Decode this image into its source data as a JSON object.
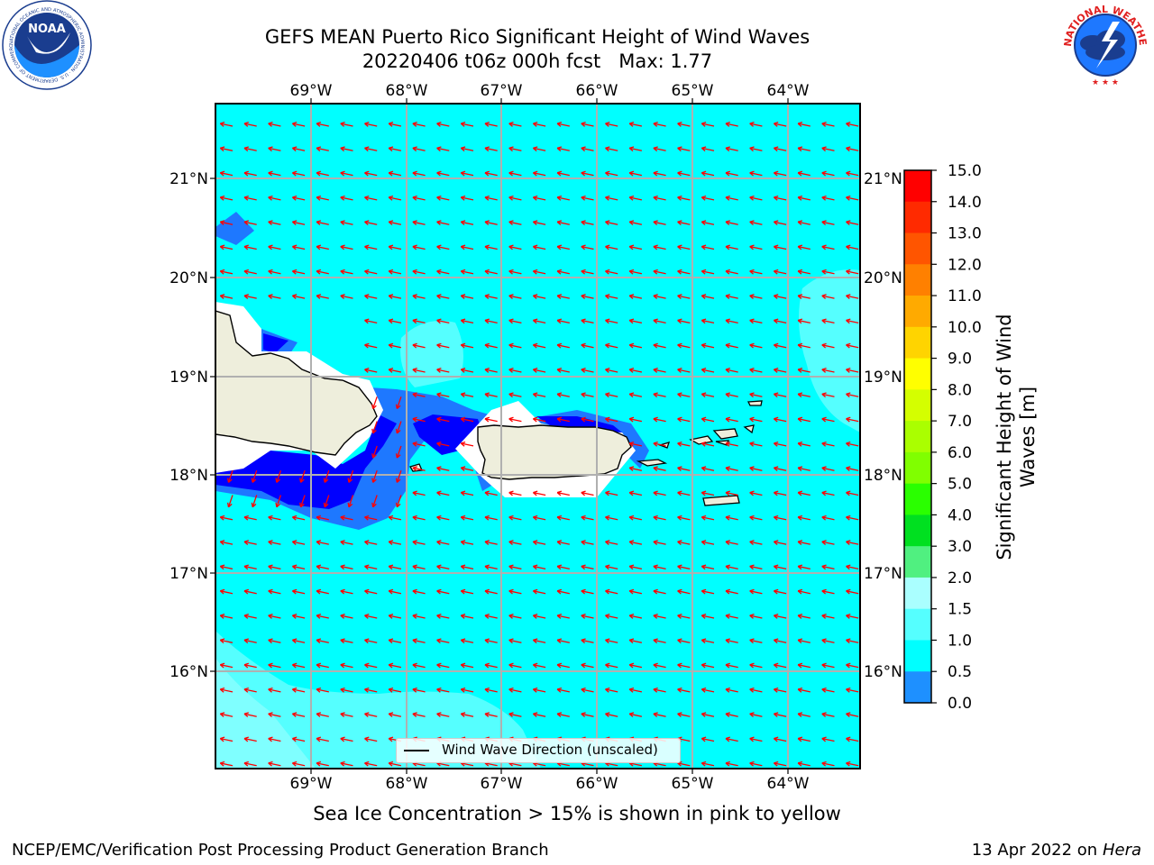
{
  "title": {
    "line1": "GEFS MEAN Puerto Rico Significant Height of Wind Waves",
    "line2": "20220406 t06z 000h fcst   Max: 1.77"
  },
  "map": {
    "lon_labels": [
      "69°W",
      "68°W",
      "67°W",
      "66°W",
      "65°W",
      "64°W"
    ],
    "lat_labels": [
      "21°N",
      "20°N",
      "19°N",
      "18°N",
      "17°N",
      "16°N"
    ],
    "legend_label": "Wind Wave Direction (unscaled)",
    "arrow_color": "#ff0000",
    "land_color": "#eeeedc",
    "background_level_color": "#00ffff"
  },
  "colorbar": {
    "label": "Significant Height of Wind Waves [m]",
    "ticks": [
      "15.0",
      "14.0",
      "13.0",
      "12.0",
      "11.0",
      "10.0",
      "9.0",
      "8.0",
      "7.0",
      "6.0",
      "5.0",
      "4.0",
      "3.0",
      "2.0",
      "1.5",
      "1.0",
      "0.5",
      "0.0"
    ],
    "colors": [
      "#ff0000",
      "#ff2a00",
      "#ff5500",
      "#ff8000",
      "#ffaa00",
      "#ffd400",
      "#ffff00",
      "#d4ff00",
      "#aaff00",
      "#80ff00",
      "#2aff00",
      "#00e020",
      "#50f080",
      "#aaffff",
      "#55ffff",
      "#00ffff",
      "#1e90ff",
      "#0000ff"
    ]
  },
  "captions": {
    "sea_ice": "Sea Ice Concentration > 15% is shown in pink to yellow",
    "footer_left": "NCEP/EMC/Verification Post Processing Product Generation Branch",
    "footer_date": "13 Apr 2022 on ",
    "footer_host": "Hera"
  },
  "logos": {
    "left": "NOAA",
    "left_ring": "NATIONAL OCEANIC AND ATMOSPHERIC ADMINISTRATION · U.S. DEPARTMENT OF COMMERCE",
    "right_ring": "NATIONAL WEATHER SERVICE"
  }
}
